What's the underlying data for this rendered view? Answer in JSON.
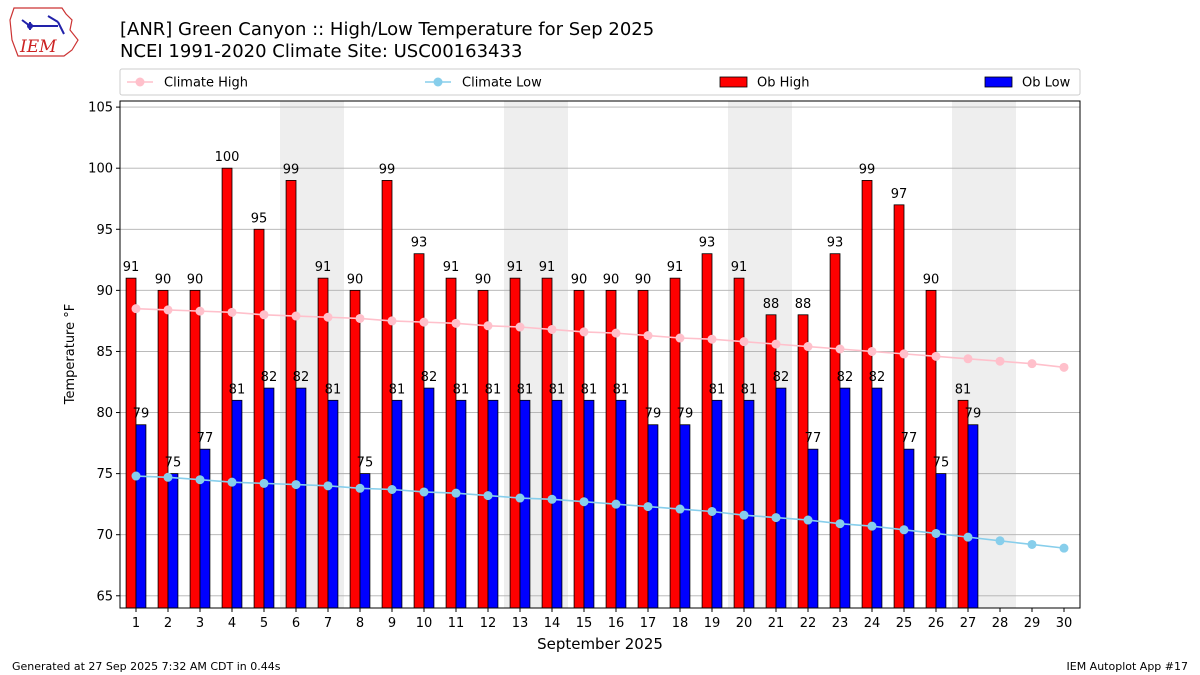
{
  "logo": {
    "text": "IEM"
  },
  "header": {
    "title": "[ANR] Green Canyon :: High/Low Temperature for Sep 2025",
    "subtitle": "NCEI 1991-2020 Climate Site: USC00163433"
  },
  "footer": {
    "left": "Generated at 27 Sep 2025 7:32 AM CDT in 0.44s",
    "right": "IEM Autoplot App #17"
  },
  "chart_data": {
    "type": "bar",
    "xlabel": "September 2025",
    "ylabel": "Temperature °F",
    "ylim": [
      64,
      105.5
    ],
    "yticks": [
      65,
      70,
      75,
      80,
      85,
      90,
      95,
      100,
      105
    ],
    "grid": true,
    "legend_position": "top",
    "weekend_days": [
      6,
      7,
      13,
      14,
      20,
      21,
      27,
      28
    ],
    "categories": [
      "1",
      "2",
      "3",
      "4",
      "5",
      "6",
      "7",
      "8",
      "9",
      "10",
      "11",
      "12",
      "13",
      "14",
      "15",
      "16",
      "17",
      "18",
      "19",
      "20",
      "21",
      "22",
      "23",
      "24",
      "25",
      "26",
      "27",
      "28",
      "29",
      "30"
    ],
    "series": [
      {
        "name": "Climate High",
        "kind": "line",
        "color": "#ffc0cb",
        "values": [
          88.5,
          88.4,
          88.3,
          88.2,
          88.0,
          87.9,
          87.8,
          87.7,
          87.5,
          87.4,
          87.3,
          87.1,
          87.0,
          86.8,
          86.6,
          86.5,
          86.3,
          86.1,
          86.0,
          85.8,
          85.6,
          85.4,
          85.2,
          85.0,
          84.8,
          84.6,
          84.4,
          84.2,
          84.0,
          83.7
        ]
      },
      {
        "name": "Climate Low",
        "kind": "line",
        "color": "#87ceeb",
        "values": [
          74.8,
          74.7,
          74.5,
          74.3,
          74.2,
          74.1,
          74.0,
          73.8,
          73.7,
          73.5,
          73.4,
          73.2,
          73.0,
          72.9,
          72.7,
          72.5,
          72.3,
          72.1,
          71.9,
          71.6,
          71.4,
          71.2,
          70.9,
          70.7,
          70.4,
          70.1,
          69.8,
          69.5,
          69.2,
          68.9
        ]
      },
      {
        "name": "Ob High",
        "kind": "bar",
        "color": "#ff0000",
        "values": [
          91,
          90,
          90,
          100,
          95,
          99,
          91,
          90,
          99,
          93,
          91,
          90,
          91,
          91,
          90,
          90,
          90,
          91,
          93,
          91,
          88,
          88,
          93,
          99,
          97,
          90,
          81,
          null,
          null,
          null
        ]
      },
      {
        "name": "Ob Low",
        "kind": "bar",
        "color": "#0000ff",
        "values": [
          79,
          75,
          77,
          81,
          82,
          82,
          81,
          75,
          81,
          82,
          81,
          81,
          81,
          81,
          81,
          81,
          79,
          79,
          81,
          81,
          82,
          77,
          82,
          82,
          77,
          75,
          79,
          null,
          null,
          null
        ]
      }
    ]
  }
}
